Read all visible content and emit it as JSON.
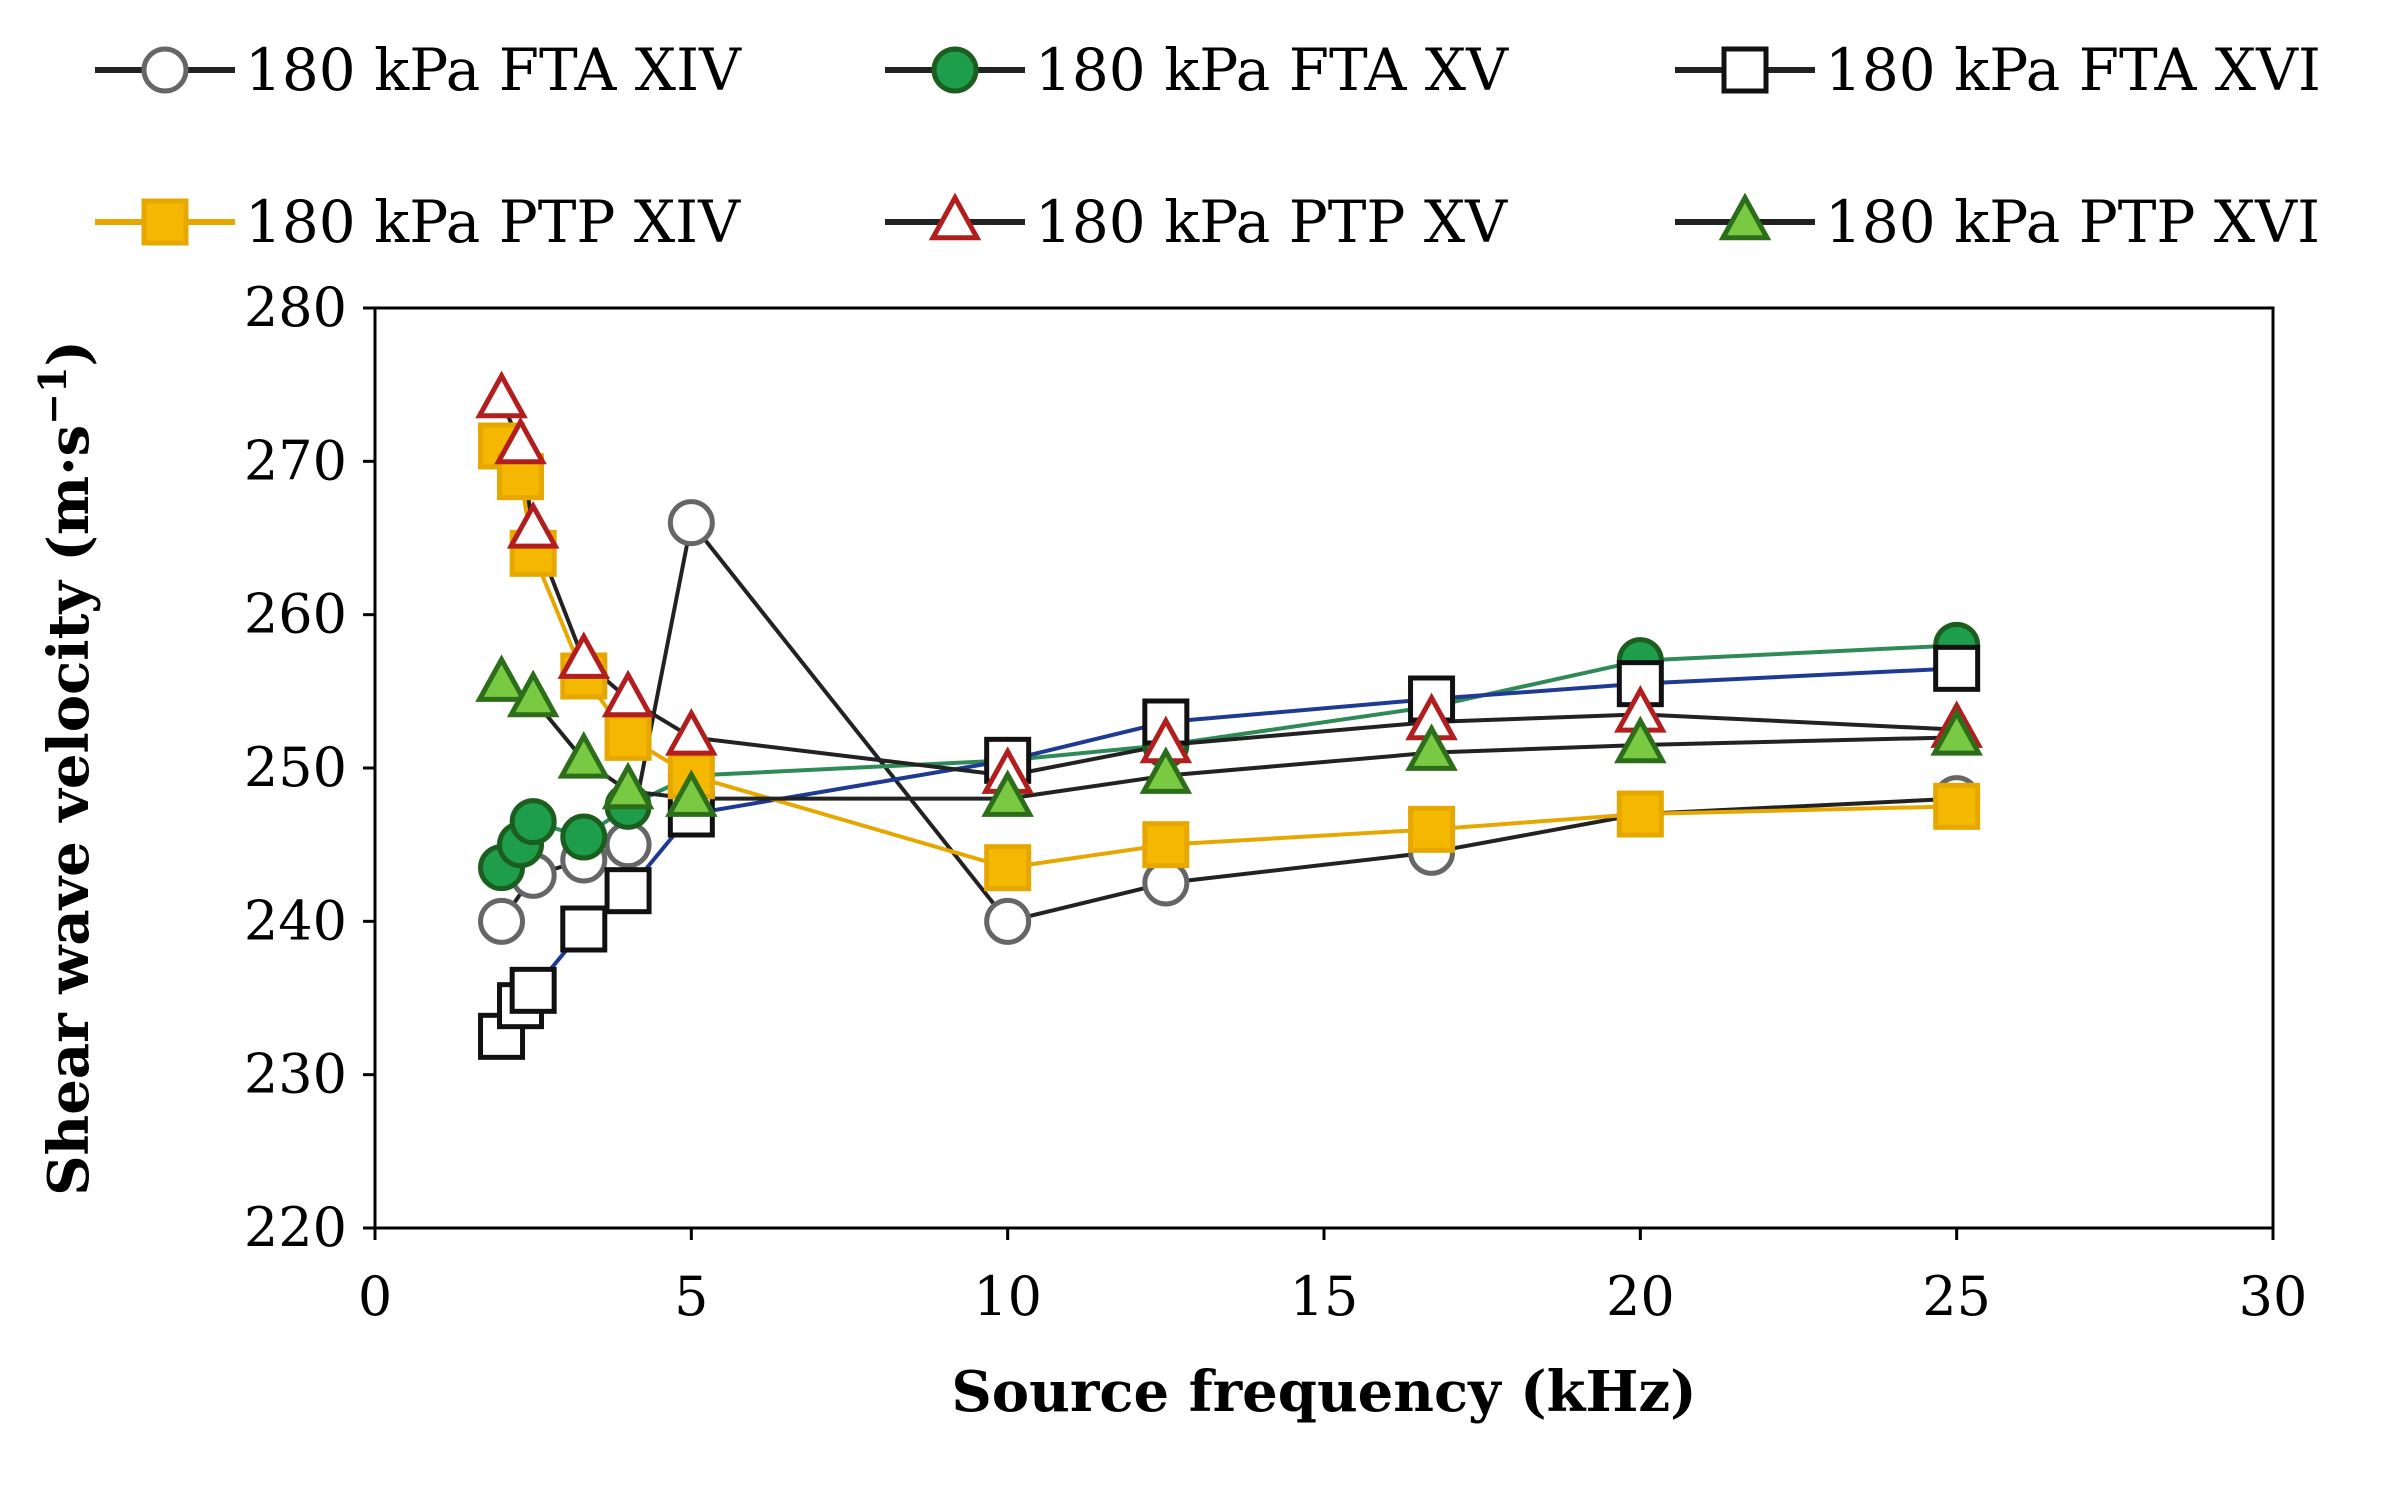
{
  "chart_data": {
    "type": "line",
    "title": "",
    "xlabel": "Source frequency (kHz)",
    "ylabel": "Shear wave velocity (m·s",
    "ylabel_sup": "−1",
    "ylabel_close": ")",
    "xlim": [
      0,
      30
    ],
    "ylim": [
      220,
      280
    ],
    "xticks": [
      0,
      5,
      10,
      15,
      20,
      25,
      30
    ],
    "yticks": [
      220,
      230,
      240,
      250,
      260,
      270,
      280
    ],
    "grid": false,
    "legend_position": "top",
    "series": [
      {
        "name": "180 kPa FTA XIV",
        "marker": "circle-open",
        "line_color": "#222222",
        "fill": "#ffffff",
        "edge": "#666666",
        "x": [
          2.0,
          2.5,
          3.3,
          4.0,
          5.0,
          10.0,
          12.5,
          16.7,
          20.0,
          25.0
        ],
        "y": [
          240,
          243,
          244,
          245,
          266,
          240,
          242.5,
          244.5,
          247,
          248
        ]
      },
      {
        "name": "180 kPa FTA XV",
        "marker": "circle-filled",
        "line_color": "#2e8b57",
        "fill": "#1e9e4a",
        "edge": "#1b5e20",
        "x": [
          2.0,
          2.3,
          2.5,
          3.3,
          4.0,
          5.0,
          10.0,
          12.5,
          16.7,
          20.0,
          25.0
        ],
        "y": [
          243.5,
          245,
          246.5,
          245.5,
          247.5,
          249.5,
          250.5,
          251.5,
          254,
          257,
          258
        ]
      },
      {
        "name": "180 kPa FTA XVI",
        "marker": "square-open",
        "line_color": "#1f3a93",
        "fill": "#ffffff",
        "edge": "#111111",
        "x": [
          2.0,
          2.3,
          2.5,
          3.3,
          4.0,
          5.0,
          10.0,
          12.5,
          16.7,
          20.0,
          25.0
        ],
        "y": [
          232.5,
          234.5,
          235.5,
          239.5,
          242,
          247,
          250.5,
          253,
          254.5,
          255.5,
          256.5
        ]
      },
      {
        "name": "180 kPa PTP XIV",
        "marker": "square-filled",
        "line_color": "#e6a800",
        "fill": "#f5b800",
        "edge": "#e6a800",
        "x": [
          2.0,
          2.3,
          2.5,
          3.3,
          4.0,
          5.0,
          10.0,
          12.5,
          16.7,
          20.0,
          25.0
        ],
        "y": [
          271,
          269,
          264,
          256,
          252,
          249.5,
          243.5,
          245,
          246,
          247,
          247.5
        ]
      },
      {
        "name": "180 kPa PTP XV",
        "marker": "triangle-open",
        "line_color": "#222222",
        "fill": "#ffffff",
        "edge": "#b21e1e",
        "x": [
          2.0,
          2.3,
          2.5,
          3.3,
          4.0,
          5.0,
          10.0,
          12.5,
          16.7,
          20.0,
          25.0
        ],
        "y": [
          274,
          271,
          265.5,
          257,
          254.5,
          252,
          249.5,
          251.5,
          253,
          253.5,
          252.5
        ]
      },
      {
        "name": "180 kPa PTP XVI",
        "marker": "triangle-filled",
        "line_color": "#222222",
        "fill": "#7ac943",
        "edge": "#2d6e1a",
        "x": [
          2.0,
          2.5,
          3.3,
          4.0,
          5.0,
          10.0,
          12.5,
          16.7,
          20.0,
          25.0
        ],
        "y": [
          255.5,
          254.5,
          250.5,
          248.5,
          248,
          248,
          249.5,
          251,
          251.5,
          252
        ]
      }
    ]
  }
}
